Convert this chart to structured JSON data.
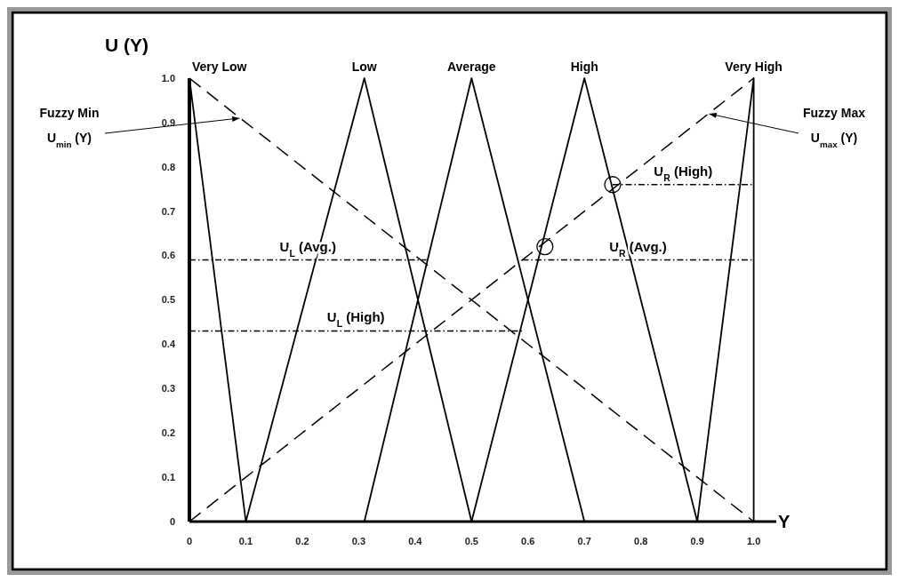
{
  "chart_data": {
    "type": "line",
    "ylabel": "U (Y)",
    "xlabel": "Y",
    "xlim": [
      0,
      1.04
    ],
    "ylim": [
      0,
      1
    ],
    "xticks": [
      0,
      0.1,
      0.2,
      0.3,
      0.4,
      0.5,
      0.6,
      0.7,
      0.8,
      0.9,
      {
        "value": 1,
        "label": "1.0"
      }
    ],
    "yticks": [
      0,
      0.1,
      0.2,
      0.3,
      0.4,
      0.5,
      0.6,
      0.7,
      0.8,
      0.9,
      {
        "value": 1,
        "label": "1.0"
      }
    ],
    "series": [
      {
        "name": "Very Low",
        "color": "#000000",
        "line_style": "solid",
        "x": [
          0,
          0.1
        ],
        "values": [
          1,
          0
        ]
      },
      {
        "name": "Low",
        "color": "#000000",
        "line_style": "solid",
        "x": [
          0.1,
          0.31,
          0.5
        ],
        "values": [
          0,
          1,
          0
        ]
      },
      {
        "name": "Average",
        "color": "#000000",
        "line_style": "solid",
        "x": [
          0.31,
          0.5,
          0.7
        ],
        "values": [
          0,
          1,
          0
        ]
      },
      {
        "name": "High",
        "color": "#000000",
        "line_style": "solid",
        "x": [
          0.5,
          0.7,
          0.9
        ],
        "values": [
          0,
          1,
          0
        ]
      },
      {
        "name": "Very High",
        "color": "#000000",
        "line_style": "solid",
        "x": [
          0.9,
          1,
          1
        ],
        "values": [
          0,
          1,
          0
        ]
      },
      {
        "color": "#000000",
        "line_style": "dashed",
        "x": [
          0,
          1
        ],
        "values": [
          1,
          0
        ]
      },
      {
        "color": "#000000",
        "line_style": "dashed",
        "x": [
          0,
          1
        ],
        "values": [
          0,
          1
        ]
      },
      {
        "name": "U$_{L}$ (Avg.)",
        "color": "#000000",
        "line_style": "dotted",
        "x": [
          0,
          0.42
        ],
        "values": [
          0.59,
          0.59
        ]
      },
      {
        "name": "U$_{R}$ (Avg.)",
        "color": "#000000",
        "line_style": "dotted",
        "x": [
          0.59,
          1
        ],
        "values": [
          0.59,
          0.59
        ]
      },
      {
        "name": "U$_{L}$ (High)",
        "color": "#000000",
        "line_style": "dotted",
        "x": [
          0,
          0.59
        ],
        "values": [
          0.43,
          0.43
        ]
      },
      {
        "name": "U$_{R}$ (High)",
        "color": "#000000",
        "line_style": "dotted",
        "x": [
          0.75,
          1
        ],
        "values": [
          0.76,
          0.76
        ]
      },
      {
        "type": "scatter",
        "marker": "circle",
        "color": "#000000",
        "x": [
          0.63,
          0.75
        ],
        "values": [
          0.62,
          0.76
        ]
      }
    ],
    "annotations": [
      "Fuzzy Min\nU$_{min}$ (Y)",
      "Fuzzy Max\nU$_{max}$ (Y)"
    ]
  }
}
